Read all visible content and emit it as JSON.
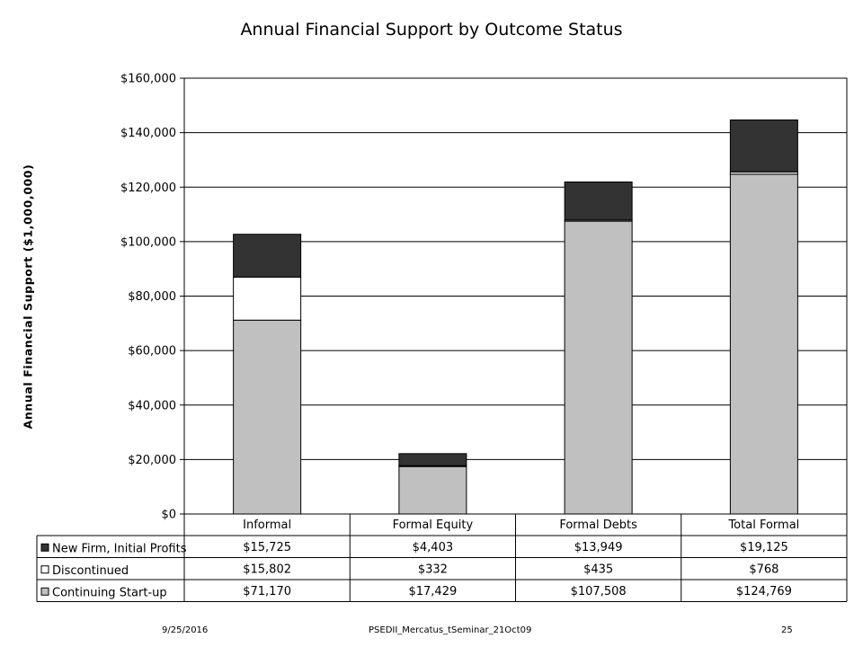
{
  "chart_data": {
    "type": "bar",
    "stacked": true,
    "title": "Annual Financial Support by Outcome Status",
    "ylabel": "Annual Financial Support ($1,000,000)",
    "xlabel": "",
    "ylim": [
      0,
      160000
    ],
    "y_ticks": [
      "$0",
      "$20,000",
      "$40,000",
      "$60,000",
      "$80,000",
      "$100,000",
      "$120,000",
      "$140,000",
      "$160,000"
    ],
    "categories": [
      "Informal",
      "Formal Equity",
      "Formal Debts",
      "Total Formal"
    ],
    "series": [
      {
        "name": "New Firm, Initial Profits",
        "color": "#333333",
        "values": [
          15725,
          4403,
          13949,
          19125
        ],
        "labels": [
          "$15,725",
          "$4,403",
          "$13,949",
          "$19,125"
        ]
      },
      {
        "name": "Discontinued",
        "color": "#ffffff",
        "values": [
          15802,
          332,
          435,
          768
        ],
        "labels": [
          "$15,802",
          "$332",
          "$435",
          "$768"
        ]
      },
      {
        "name": "Continuing Start-up",
        "color": "#c0c0c0",
        "values": [
          71170,
          17429,
          107508,
          124769
        ],
        "labels": [
          "$71,170",
          "$17,429",
          "$107,508",
          "$124,769"
        ]
      }
    ],
    "grid": true,
    "legend": "data-table"
  },
  "footer": {
    "date": "9/25/2016",
    "source": "PSEDII_Mercatus_tSeminar_21Oct09",
    "page": "25"
  }
}
